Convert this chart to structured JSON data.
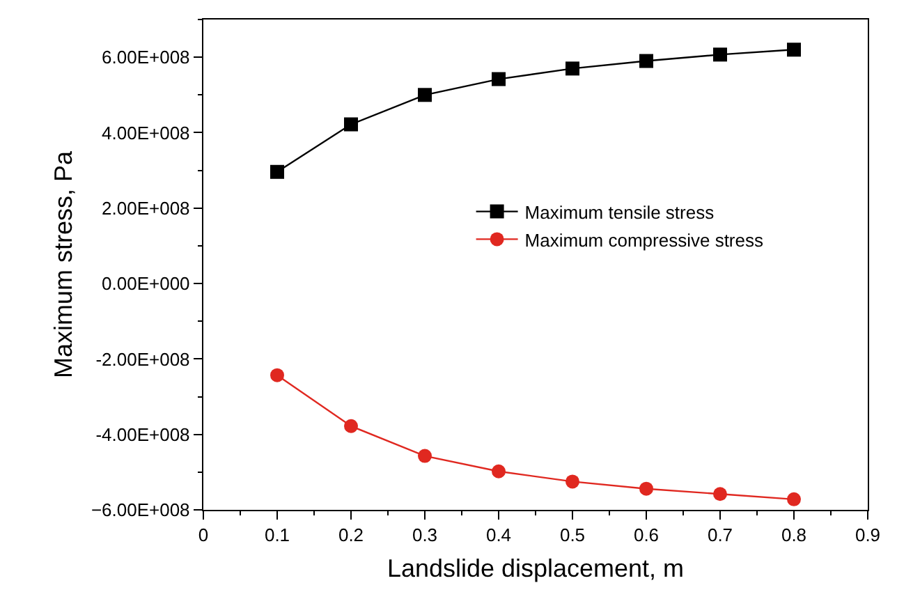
{
  "chart_data": {
    "type": "line",
    "xlabel": "Landslide displacement, m",
    "ylabel": "Maximum stress, Pa",
    "x": [
      0.1,
      0.2,
      0.3,
      0.4,
      0.5,
      0.6,
      0.7,
      0.8
    ],
    "series": [
      {
        "name": "Maximum tensile stress",
        "color": "#000000",
        "marker": "square",
        "values": [
          296000000.0,
          422000000.0,
          500000000.0,
          542000000.0,
          570000000.0,
          590000000.0,
          607000000.0,
          620000000.0
        ]
      },
      {
        "name": "Maximum compressive stress",
        "color": "#e02820",
        "marker": "circle",
        "values": [
          -243000000.0,
          -378000000.0,
          -457000000.0,
          -498000000.0,
          -525000000.0,
          -544000000.0,
          -558000000.0,
          -572000000.0
        ]
      }
    ],
    "xlim": [
      0,
      0.9
    ],
    "xticks": [
      {
        "value": 0,
        "label": "0"
      },
      0.1,
      0.2,
      0.3,
      0.4,
      0.5,
      0.6,
      0.7,
      0.8,
      0.9
    ],
    "ylim": [
      -600000000.0,
      700000000.0
    ],
    "yticks": [
      {
        "value": -600000000.0,
        "label": "−6.00E+008"
      },
      {
        "value": -400000000.0,
        "label": "-4.00E+008"
      },
      {
        "value": -200000000.0,
        "label": "-2.00E+008"
      },
      {
        "value": 0,
        "label": "0.00E+000"
      },
      {
        "value": 200000000.0,
        "label": "2.00E+008"
      },
      {
        "value": 400000000.0,
        "label": "4.00E+008"
      },
      {
        "value": 600000000.0,
        "label": "6.00E+008"
      }
    ],
    "legend": "right",
    "line_style": "solid"
  }
}
